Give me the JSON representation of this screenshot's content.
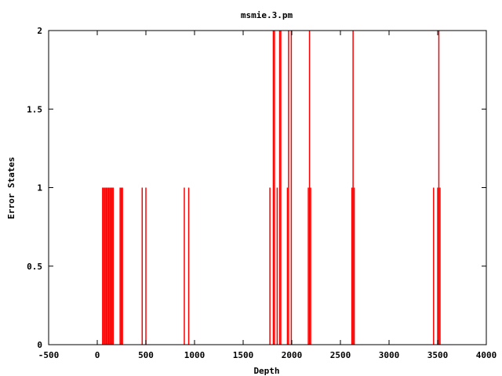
{
  "chart_data": {
    "type": "bar",
    "title": "msmie.3.pm",
    "xlabel": "Depth",
    "ylabel": "Error States",
    "xlim": [
      -500,
      4000
    ],
    "ylim": [
      0,
      2
    ],
    "x_ticks": [
      -500,
      0,
      500,
      1000,
      1500,
      2000,
      2500,
      3000,
      3500,
      4000
    ],
    "y_ticks": [
      0,
      0.5,
      1,
      1.5,
      2
    ],
    "y_tick_labels": [
      "0",
      "0.5",
      "1",
      "1.5",
      "2"
    ],
    "grid": false,
    "bar_color": "#ff0000",
    "bar_width": 12,
    "points": [
      {
        "x": 55,
        "y": 1
      },
      {
        "x": 68,
        "y": 1
      },
      {
        "x": 80,
        "y": 1
      },
      {
        "x": 92,
        "y": 1
      },
      {
        "x": 104,
        "y": 1
      },
      {
        "x": 116,
        "y": 1
      },
      {
        "x": 128,
        "y": 1
      },
      {
        "x": 140,
        "y": 1
      },
      {
        "x": 152,
        "y": 1
      },
      {
        "x": 164,
        "y": 1
      },
      {
        "x": 235,
        "y": 1
      },
      {
        "x": 247,
        "y": 1
      },
      {
        "x": 259,
        "y": 1
      },
      {
        "x": 462,
        "y": 1
      },
      {
        "x": 500,
        "y": 1
      },
      {
        "x": 895,
        "y": 1
      },
      {
        "x": 940,
        "y": 1
      },
      {
        "x": 1775,
        "y": 1
      },
      {
        "x": 1810,
        "y": 2
      },
      {
        "x": 1822,
        "y": 2
      },
      {
        "x": 1850,
        "y": 1
      },
      {
        "x": 1875,
        "y": 2
      },
      {
        "x": 1887,
        "y": 2
      },
      {
        "x": 1955,
        "y": 1
      },
      {
        "x": 1967,
        "y": 2
      },
      {
        "x": 1995,
        "y": 2
      },
      {
        "x": 2170,
        "y": 1
      },
      {
        "x": 2182,
        "y": 2
      },
      {
        "x": 2194,
        "y": 1
      },
      {
        "x": 2618,
        "y": 1
      },
      {
        "x": 2630,
        "y": 2
      },
      {
        "x": 2642,
        "y": 1
      },
      {
        "x": 3458,
        "y": 1
      },
      {
        "x": 3500,
        "y": 1
      },
      {
        "x": 3512,
        "y": 2
      },
      {
        "x": 3524,
        "y": 1
      }
    ]
  }
}
